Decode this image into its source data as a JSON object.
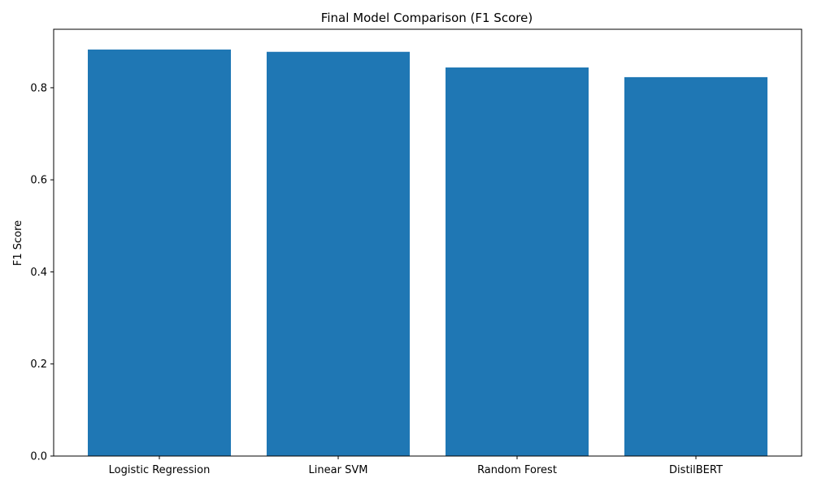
{
  "chart_data": {
    "type": "bar",
    "title": "Final Model Comparison (F1 Score)",
    "xlabel": "",
    "ylabel": "F1 Score",
    "categories": [
      "Logistic Regression",
      "Linear SVM",
      "Random Forest",
      "DistilBERT"
    ],
    "values": [
      0.883,
      0.878,
      0.844,
      0.823
    ],
    "ylim": [
      0,
      0.927
    ],
    "yticks": [
      0.0,
      0.2,
      0.4,
      0.6,
      0.8
    ],
    "ytick_labels": [
      "0.0",
      "0.2",
      "0.4",
      "0.6",
      "0.8"
    ],
    "grid": false,
    "legend": "none",
    "colors": {
      "bar": "#1f77b4",
      "axis": "#000000",
      "background": "#ffffff"
    }
  }
}
